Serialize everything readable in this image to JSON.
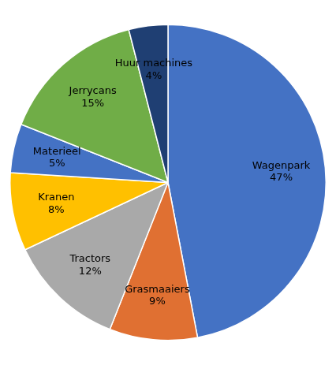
{
  "chart_data": {
    "type": "pie",
    "categories": [
      "Wagenpark",
      "Grasmaaiers",
      "Tractors",
      "Kranen",
      "Materieel",
      "Jerrycans",
      "Huur machines"
    ],
    "values": [
      47,
      9,
      12,
      8,
      5,
      15,
      4
    ],
    "value_labels": [
      "47%",
      "9%",
      "12%",
      "8%",
      "5%",
      "15%",
      "4%"
    ],
    "colors": [
      "#4472C4",
      "#E07032",
      "#A9A9A9",
      "#FFC000",
      "#4472C4",
      "#70AD47",
      "#1F3F73"
    ],
    "data_labels": true
  }
}
